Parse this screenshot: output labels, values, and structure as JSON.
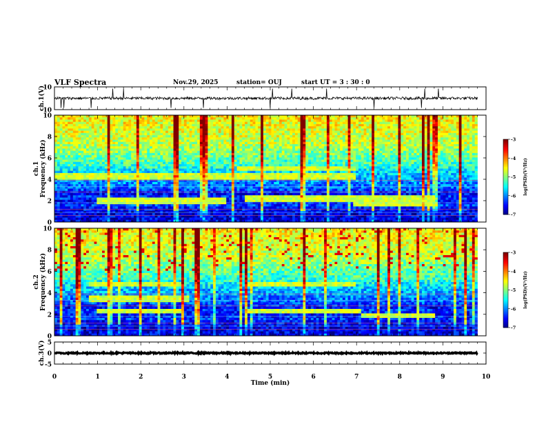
{
  "header": {
    "title": "VLF Spectra",
    "date": "Nov.29, 2025",
    "station": "station= OUJ",
    "start": "start  UT =   3  : 30 : 0"
  },
  "chart_data": [
    {
      "type": "line",
      "panel": "ch1-waveform",
      "ylabel": "ch.1(V)",
      "ylim": [
        -10,
        10
      ],
      "yticks": [
        "10",
        "-10"
      ],
      "baseline": 0,
      "noise_amplitude": 1.2,
      "spikes_min": [
        0.15,
        0.22,
        0.85,
        1.35,
        1.6,
        2.7,
        3.45,
        5.0,
        5.05,
        5.5,
        6.3,
        7.4,
        8.5,
        8.58,
        8.9
      ]
    },
    {
      "type": "heatmap",
      "panel": "ch1-spectrogram",
      "ylabel": "ch.1\nFrequency  (kHz)",
      "ylim": [
        0,
        10
      ],
      "yticks": [
        "0",
        "2",
        "4",
        "6",
        "8",
        "10"
      ],
      "colorbar": {
        "label": "log(PSD)(V²/Hz)",
        "range": [
          -7,
          -3
        ],
        "ticks": [
          "-3",
          "-4",
          "-5",
          "-6",
          "-7"
        ]
      },
      "bands_khz": [
        {
          "from_min": 0.0,
          "to_min": 7.0,
          "freq": 4.3
        },
        {
          "from_min": 4.2,
          "to_min": 7.0,
          "freq": 5.0
        },
        {
          "from_min": 1.0,
          "to_min": 4.0,
          "freq": 2.0
        },
        {
          "from_min": 4.4,
          "to_min": 8.8,
          "freq": 2.2
        },
        {
          "from_min": 6.9,
          "to_min": 8.9,
          "freq": 1.7
        }
      ]
    },
    {
      "type": "heatmap",
      "panel": "ch2-spectrogram",
      "ylabel": "ch.2\nFrequency  (kHz)",
      "ylim": [
        0,
        10
      ],
      "yticks": [
        "0",
        "2",
        "4",
        "6",
        "8",
        "10"
      ],
      "colorbar": {
        "label": "log(PSD)(V²/Hz)",
        "range": [
          -7,
          -3
        ],
        "ticks": [
          "-3",
          "-4",
          "-5",
          "-6",
          "-7"
        ]
      },
      "bands_khz": [
        {
          "from_min": 0.8,
          "to_min": 3.0,
          "freq": 4.8
        },
        {
          "from_min": 4.4,
          "to_min": 7.0,
          "freq": 4.8
        },
        {
          "from_min": 1.0,
          "to_min": 3.0,
          "freq": 2.3
        },
        {
          "from_min": 4.4,
          "to_min": 7.1,
          "freq": 2.3
        },
        {
          "from_min": 7.1,
          "to_min": 8.8,
          "freq": 1.9
        },
        {
          "from_min": 0.8,
          "to_min": 3.1,
          "freq": 3.4
        }
      ]
    },
    {
      "type": "line",
      "panel": "ch3-waveform",
      "ylabel": "ch.3(V)",
      "ylim": [
        -5,
        5
      ],
      "yticks": [
        "5",
        "0",
        "-5"
      ],
      "baseline": 0,
      "noise_amplitude": 0.3,
      "xlabel": "Time  (min)",
      "xlim": [
        0,
        10
      ],
      "xticks": [
        "0",
        "1",
        "2",
        "3",
        "4",
        "5",
        "6",
        "7",
        "8",
        "9",
        "10"
      ],
      "data_end_min": 9.8
    }
  ]
}
